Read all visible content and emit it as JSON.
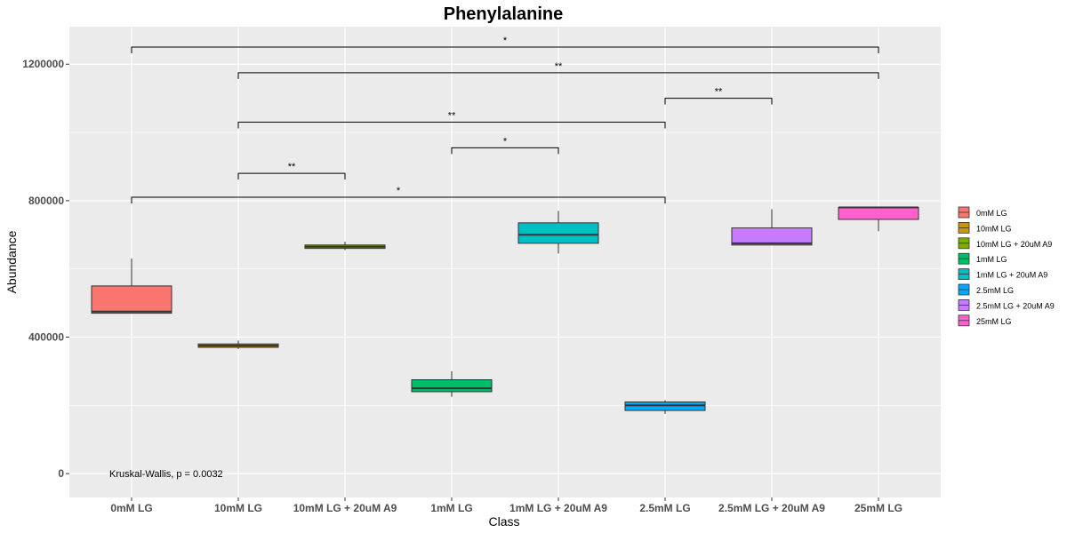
{
  "chart_data": {
    "type": "box",
    "title": "Phenylalanine",
    "xlabel": "Class",
    "ylabel": "Abundance",
    "ylim": [
      -70000,
      1310000
    ],
    "yticks": [
      0,
      400000,
      800000,
      1200000
    ],
    "ytick_labels": [
      "0",
      "400000",
      "800000",
      "1200000"
    ],
    "grid": true,
    "legend_position": "right",
    "categories": [
      "0mM LG",
      "10mM LG",
      "10mM LG + 20uM A9",
      "1mM LG",
      "1mM LG + 20uM A9",
      "2.5mM LG",
      "2.5mM LG + 20uM A9",
      "25mM LG"
    ],
    "legend_labels": [
      "0mM LG",
      "10mM LG",
      "10mM LG + 20uM A9",
      "1mM LG",
      "1mM LG + 20uM A9",
      "2.5mM LG",
      "2.5mM LG + 20uM A9",
      "25mM LG"
    ],
    "colors": [
      "#F8766D",
      "#CD9600",
      "#7CAE00",
      "#00BE67",
      "#00BFC4",
      "#00A9FF",
      "#C77CFF",
      "#FF61CC"
    ],
    "boxes": [
      {
        "min": 470000,
        "q1": 470000,
        "median": 475000,
        "q3": 550000,
        "max": 630000
      },
      {
        "min": 365000,
        "q1": 370000,
        "median": 375000,
        "q3": 380000,
        "max": 390000
      },
      {
        "min": 655000,
        "q1": 660000,
        "median": 665000,
        "q3": 670000,
        "max": 680000
      },
      {
        "min": 225000,
        "q1": 240000,
        "median": 250000,
        "q3": 275000,
        "max": 300000
      },
      {
        "min": 645000,
        "q1": 675000,
        "median": 700000,
        "q3": 735000,
        "max": 770000
      },
      {
        "min": 175000,
        "q1": 185000,
        "median": 200000,
        "q3": 210000,
        "max": 215000
      },
      {
        "min": 670000,
        "q1": 670000,
        "median": 675000,
        "q3": 720000,
        "max": 775000
      },
      {
        "min": 710000,
        "q1": 745000,
        "median": 780000,
        "q3": 780000,
        "max": 780000
      }
    ],
    "comparisons": [
      {
        "from": 0,
        "to": 7,
        "y": 1250000,
        "label": "*"
      },
      {
        "from": 1,
        "to": 7,
        "y": 1175000,
        "label": "**"
      },
      {
        "from": 5,
        "to": 6,
        "y": 1100000,
        "label": "**"
      },
      {
        "from": 1,
        "to": 5,
        "y": 1030000,
        "label": "**"
      },
      {
        "from": 3,
        "to": 4,
        "y": 955000,
        "label": "*"
      },
      {
        "from": 1,
        "to": 2,
        "y": 880000,
        "label": "**"
      },
      {
        "from": 0,
        "to": 5,
        "y": 810000,
        "label": "*"
      }
    ],
    "annotation": "Kruskal-Wallis, p = 0.0032"
  }
}
